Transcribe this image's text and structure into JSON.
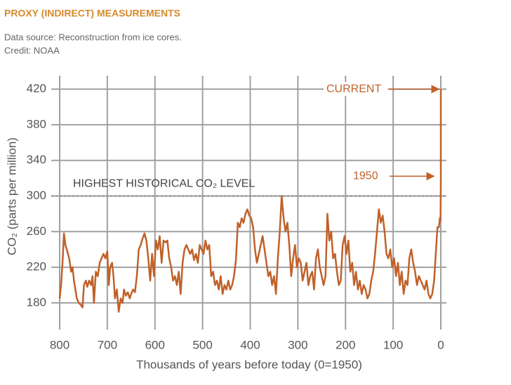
{
  "chart_data": {
    "type": "line",
    "title": "PROXY (INDIRECT) MEASUREMENTS",
    "subtitle": [
      "Data source: Reconstruction from ice cores.",
      "Credit: NOAA"
    ],
    "xlabel": "Thousands of years before today (0=1950)",
    "ylabel": "CO₂ (parts per million)",
    "xlim": [
      800,
      0
    ],
    "xticks": [
      800,
      700,
      600,
      500,
      400,
      300,
      200,
      100,
      0
    ],
    "ylim": [
      150,
      430
    ],
    "yticks": [
      180,
      220,
      260,
      300,
      340,
      380,
      420
    ],
    "grid": true,
    "reference_line": {
      "y": 300,
      "label": "HIGHEST HISTORICAL CO₂ LEVEL"
    },
    "annotations": [
      {
        "text": "CURRENT",
        "x": 0,
        "y": 420
      },
      {
        "text": "1950",
        "x": 0,
        "y": 312
      }
    ],
    "series": [
      {
        "color": "#c0612a",
        "x": [
          800,
          797,
          794,
          791,
          788,
          785,
          780,
          776,
          773,
          770,
          767,
          764,
          760,
          756,
          752,
          749,
          745,
          742,
          738,
          734,
          731,
          728,
          724,
          720,
          716,
          712,
          708,
          704,
          700,
          697,
          694,
          690,
          687,
          684,
          680,
          676,
          672,
          668,
          665,
          661,
          657,
          653,
          650,
          646,
          642,
          638,
          634,
          630,
          626,
          622,
          618,
          614,
          610,
          606,
          602,
          598,
          594,
          590,
          586,
          582,
          578,
          574,
          570,
          566,
          562,
          558,
          554,
          550,
          546,
          542,
          538,
          534,
          530,
          526,
          522,
          518,
          514,
          510,
          506,
          502,
          498,
          494,
          490,
          486,
          482,
          478,
          474,
          470,
          466,
          462,
          458,
          454,
          450,
          446,
          442,
          438,
          434,
          430,
          426,
          422,
          418,
          414,
          410,
          406,
          402,
          398,
          394,
          390,
          386,
          382,
          378,
          374,
          370,
          366,
          362,
          358,
          354,
          350,
          346,
          342,
          338,
          334,
          330,
          326,
          322,
          318,
          314,
          310,
          306,
          302,
          298,
          294,
          290,
          286,
          282,
          278,
          274,
          270,
          266,
          262,
          258,
          254,
          250,
          246,
          242,
          238,
          234,
          230,
          226,
          222,
          218,
          214,
          210,
          206,
          202,
          198,
          194,
          190,
          186,
          182,
          178,
          174,
          170,
          166,
          162,
          158,
          154,
          150,
          146,
          142,
          138,
          134,
          130,
          126,
          122,
          118,
          114,
          110,
          106,
          102,
          98,
          94,
          90,
          86,
          82,
          78,
          74,
          70,
          66,
          62,
          58,
          54,
          50,
          46,
          42,
          38,
          34,
          30,
          26,
          22,
          18,
          14,
          10,
          7,
          4,
          2,
          1,
          0.5,
          0,
          0
        ],
        "values": [
          185,
          200,
          225,
          258,
          245,
          240,
          230,
          215,
          220,
          205,
          195,
          185,
          180,
          178,
          175,
          200,
          205,
          198,
          205,
          200,
          210,
          180,
          215,
          210,
          225,
          230,
          235,
          230,
          238,
          200,
          220,
          225,
          210,
          185,
          195,
          170,
          185,
          180,
          195,
          188,
          192,
          185,
          190,
          195,
          192,
          210,
          240,
          245,
          252,
          258,
          250,
          230,
          205,
          235,
          210,
          250,
          240,
          255,
          225,
          250,
          248,
          250,
          230,
          220,
          205,
          210,
          200,
          215,
          190,
          225,
          240,
          245,
          240,
          235,
          240,
          228,
          235,
          225,
          245,
          240,
          235,
          250,
          240,
          245,
          210,
          215,
          200,
          205,
          195,
          210,
          190,
          200,
          195,
          205,
          195,
          200,
          210,
          228,
          270,
          265,
          275,
          270,
          280,
          285,
          278,
          275,
          265,
          240,
          225,
          235,
          245,
          255,
          240,
          225,
          210,
          215,
          200,
          210,
          190,
          230,
          260,
          300,
          275,
          260,
          270,
          245,
          210,
          230,
          245,
          220,
          230,
          225,
          205,
          215,
          225,
          200,
          210,
          215,
          195,
          230,
          240,
          220,
          210,
          200,
          210,
          280,
          250,
          260,
          230,
          235,
          215,
          200,
          205,
          245,
          255,
          235,
          250,
          215,
          225,
          200,
          215,
          195,
          205,
          190,
          200,
          195,
          185,
          190,
          205,
          215,
          235,
          260,
          285,
          270,
          278,
          260,
          235,
          230,
          240,
          220,
          230,
          210,
          225,
          200,
          215,
          190,
          205,
          200,
          230,
          240,
          225,
          215,
          200,
          210,
          205,
          200,
          195,
          205,
          190,
          185,
          190,
          205,
          240,
          265,
          265,
          275,
          272,
          280,
          312,
          420
        ]
      }
    ]
  }
}
